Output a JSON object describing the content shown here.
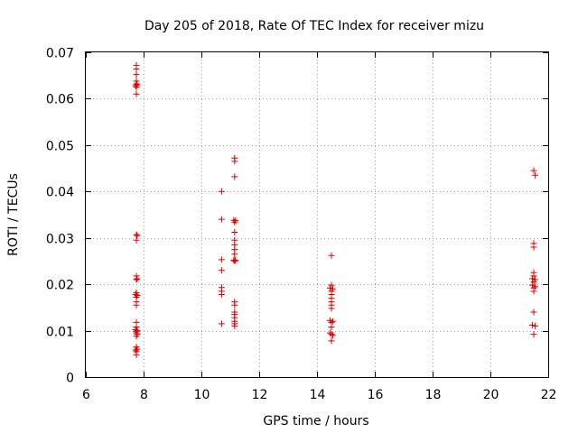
{
  "chart_data": {
    "type": "scatter",
    "title": "Day 205 of 2018, Rate Of TEC Index for receiver mizu",
    "xlabel": "GPS time / hours",
    "ylabel": "ROTI / TECUs",
    "xlim": [
      6,
      22
    ],
    "ylim": [
      0,
      0.07
    ],
    "x_ticks": [
      6,
      8,
      10,
      12,
      14,
      16,
      18,
      20,
      22
    ],
    "x_tick_labels": [
      "6",
      "8",
      "10",
      "12",
      "14",
      "16",
      "18",
      "20",
      "22"
    ],
    "y_ticks": [
      0,
      0.01,
      0.02,
      0.03,
      0.04,
      0.05,
      0.06,
      0.07
    ],
    "y_tick_labels": [
      "0",
      "0.01",
      "0.02",
      "0.03",
      "0.04",
      "0.05",
      "0.06",
      "0.07"
    ],
    "grid": true,
    "marker": "+",
    "color": "#dd0000",
    "series": [
      {
        "name": "ROTI",
        "points": [
          [
            7.75,
            0.0672
          ],
          [
            7.75,
            0.0664
          ],
          [
            7.75,
            0.0652
          ],
          [
            7.75,
            0.0638
          ],
          [
            7.75,
            0.0632
          ],
          [
            7.78,
            0.063
          ],
          [
            7.72,
            0.0628
          ],
          [
            7.75,
            0.0625
          ],
          [
            7.75,
            0.061
          ],
          [
            7.75,
            0.0307
          ],
          [
            7.78,
            0.0305
          ],
          [
            7.75,
            0.0295
          ],
          [
            7.75,
            0.0218
          ],
          [
            7.78,
            0.0212
          ],
          [
            7.75,
            0.021
          ],
          [
            7.75,
            0.0182
          ],
          [
            7.72,
            0.0178
          ],
          [
            7.78,
            0.0176
          ],
          [
            7.75,
            0.0172
          ],
          [
            7.75,
            0.0162
          ],
          [
            7.75,
            0.0155
          ],
          [
            7.75,
            0.0118
          ],
          [
            7.75,
            0.0108
          ],
          [
            7.72,
            0.0102
          ],
          [
            7.78,
            0.01
          ],
          [
            7.75,
            0.0098
          ],
          [
            7.75,
            0.0095
          ],
          [
            7.78,
            0.0092
          ],
          [
            7.75,
            0.0088
          ],
          [
            7.75,
            0.0065
          ],
          [
            7.78,
            0.006
          ],
          [
            7.72,
            0.0058
          ],
          [
            7.75,
            0.0055
          ],
          [
            7.75,
            0.0048
          ],
          [
            10.7,
            0.04
          ],
          [
            10.7,
            0.034
          ],
          [
            10.7,
            0.0253
          ],
          [
            10.7,
            0.023
          ],
          [
            10.7,
            0.0193
          ],
          [
            10.7,
            0.0185
          ],
          [
            10.7,
            0.0178
          ],
          [
            10.7,
            0.0115
          ],
          [
            11.15,
            0.0472
          ],
          [
            11.15,
            0.0465
          ],
          [
            11.15,
            0.0432
          ],
          [
            11.12,
            0.0338
          ],
          [
            11.18,
            0.0337
          ],
          [
            11.15,
            0.0334
          ],
          [
            11.15,
            0.0312
          ],
          [
            11.15,
            0.0295
          ],
          [
            11.15,
            0.0285
          ],
          [
            11.15,
            0.0275
          ],
          [
            11.15,
            0.0265
          ],
          [
            11.12,
            0.0252
          ],
          [
            11.18,
            0.0252
          ],
          [
            11.15,
            0.025
          ],
          [
            11.15,
            0.0162
          ],
          [
            11.15,
            0.0155
          ],
          [
            11.15,
            0.014
          ],
          [
            11.15,
            0.0135
          ],
          [
            11.15,
            0.0128
          ],
          [
            11.15,
            0.012
          ],
          [
            11.15,
            0.0115
          ],
          [
            11.15,
            0.011
          ],
          [
            14.5,
            0.0262
          ],
          [
            14.5,
            0.0198
          ],
          [
            14.45,
            0.0192
          ],
          [
            14.55,
            0.019
          ],
          [
            14.5,
            0.0185
          ],
          [
            14.5,
            0.0178
          ],
          [
            14.5,
            0.017
          ],
          [
            14.5,
            0.0162
          ],
          [
            14.5,
            0.0155
          ],
          [
            14.5,
            0.0148
          ],
          [
            14.45,
            0.0122
          ],
          [
            14.55,
            0.012
          ],
          [
            14.5,
            0.0118
          ],
          [
            14.5,
            0.0108
          ],
          [
            14.45,
            0.0095
          ],
          [
            14.5,
            0.0092
          ],
          [
            14.55,
            0.009
          ],
          [
            14.5,
            0.0078
          ],
          [
            21.5,
            0.0445
          ],
          [
            21.55,
            0.0435
          ],
          [
            21.5,
            0.0288
          ],
          [
            21.5,
            0.028
          ],
          [
            21.5,
            0.0225
          ],
          [
            21.5,
            0.0218
          ],
          [
            21.45,
            0.0212
          ],
          [
            21.55,
            0.021
          ],
          [
            21.5,
            0.0205
          ],
          [
            21.45,
            0.0198
          ],
          [
            21.55,
            0.0195
          ],
          [
            21.5,
            0.0192
          ],
          [
            21.5,
            0.0185
          ],
          [
            21.5,
            0.014
          ],
          [
            21.45,
            0.0112
          ],
          [
            21.55,
            0.011
          ],
          [
            21.5,
            0.0092
          ]
        ]
      }
    ]
  }
}
